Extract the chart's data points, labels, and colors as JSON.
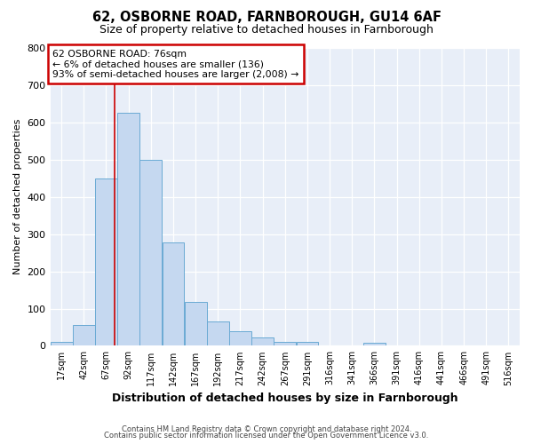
{
  "title": "62, OSBORNE ROAD, FARNBOROUGH, GU14 6AF",
  "subtitle": "Size of property relative to detached houses in Farnborough",
  "xlabel": "Distribution of detached houses by size in Farnborough",
  "ylabel": "Number of detached properties",
  "bar_values": [
    10,
    57,
    450,
    625,
    500,
    278,
    118,
    65,
    38,
    22,
    10,
    10,
    0,
    0,
    8,
    0,
    0,
    0,
    0,
    0,
    0
  ],
  "bar_labels": [
    "17sqm",
    "42sqm",
    "67sqm",
    "92sqm",
    "117sqm",
    "142sqm",
    "167sqm",
    "192sqm",
    "217sqm",
    "242sqm",
    "267sqm",
    "291sqm",
    "316sqm",
    "341sqm",
    "366sqm",
    "391sqm",
    "416sqm",
    "441sqm",
    "466sqm",
    "491sqm",
    "516sqm"
  ],
  "bar_color": "#c5d8f0",
  "bar_edge_color": "#6aaad4",
  "vline_color": "#cc0000",
  "annotation_line1": "62 OSBORNE ROAD: 76sqm",
  "annotation_line2": "← 6% of detached houses are smaller (136)",
  "annotation_line3": "93% of semi-detached houses are larger (2,008) →",
  "annotation_box_facecolor": "#ffffff",
  "annotation_box_edgecolor": "#cc0000",
  "ylim": [
    0,
    800
  ],
  "yticks": [
    0,
    100,
    200,
    300,
    400,
    500,
    600,
    700,
    800
  ],
  "footer_line1": "Contains HM Land Registry data © Crown copyright and database right 2024.",
  "footer_line2": "Contains public sector information licensed under the Open Government Licence v3.0.",
  "bg_color": "#ffffff",
  "plot_bg_color": "#e8eef8",
  "grid_color": "#ffffff",
  "bin_width": 25,
  "property_sqm": 76
}
